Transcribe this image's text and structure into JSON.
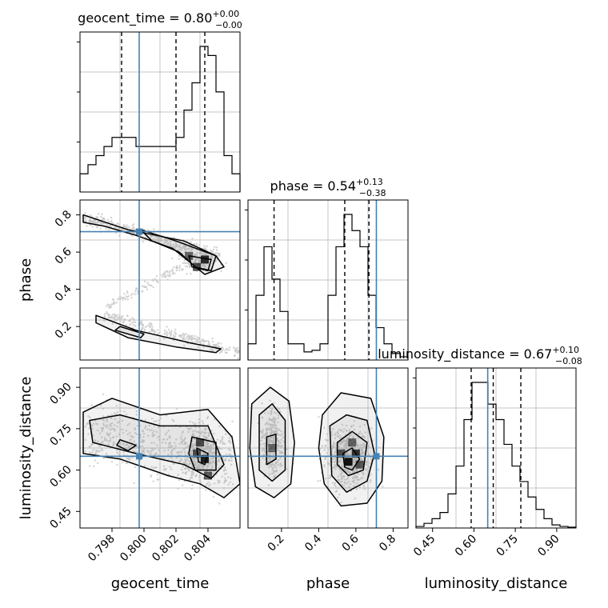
{
  "chart_data": {
    "type": "corner",
    "params": [
      {
        "name": "geocent_time",
        "range": [
          0.796,
          0.806
        ],
        "truth": 0.7997,
        "quantiles": [
          0.7986,
          0.802,
          0.8038
        ],
        "title": {
          "main": "geocent_time = 0.80",
          "sup": "+0.00",
          "sub": "−0.00"
        },
        "ticks": [
          "0.798",
          "0.800",
          "0.802",
          "0.804"
        ],
        "tick_values": [
          0.798,
          0.8,
          0.802,
          0.804
        ],
        "hist": [
          2,
          3,
          4,
          5,
          6,
          6,
          6,
          5,
          5,
          5,
          5,
          5,
          6,
          9,
          12,
          16,
          15,
          11,
          4,
          2
        ]
      },
      {
        "name": "phase",
        "range": [
          0.02,
          0.88
        ],
        "truth": 0.71,
        "quantiles": [
          0.16,
          0.54,
          0.67
        ],
        "title": {
          "main": "phase = 0.54",
          "sup": "+0.13",
          "sub": "−0.38"
        },
        "ticks": [
          "0.2",
          "0.4",
          "0.6",
          "0.8"
        ],
        "tick_values": [
          0.2,
          0.4,
          0.6,
          0.8
        ],
        "hist": [
          1,
          4,
          7,
          5,
          3,
          1,
          1,
          0.5,
          0.6,
          1,
          4,
          7,
          9,
          8,
          7,
          4,
          2,
          1,
          0.4,
          0.2
        ]
      },
      {
        "name": "luminosity_distance",
        "range": [
          0.39,
          0.97
        ],
        "truth": 0.65,
        "quantiles": [
          0.59,
          0.67,
          0.77
        ],
        "title": {
          "main": "luminosity_distance = 0.67",
          "sup": "+0.10",
          "sub": "−0.08"
        },
        "ticks": [
          "0.45",
          "0.60",
          "0.75",
          "0.90"
        ],
        "tick_values": [
          0.45,
          0.6,
          0.75,
          0.9
        ],
        "hist": [
          0.1,
          0.3,
          0.6,
          1,
          2.2,
          4,
          7,
          9.4,
          9.4,
          8,
          7,
          5.4,
          4,
          3,
          2,
          1.2,
          0.6,
          0.2,
          0.1,
          0.05
        ]
      }
    ],
    "colors": {
      "truth": "#4682b4",
      "contour": "#000000",
      "grid": "#b0b0b0",
      "scatter": "#c8c8c8"
    }
  }
}
